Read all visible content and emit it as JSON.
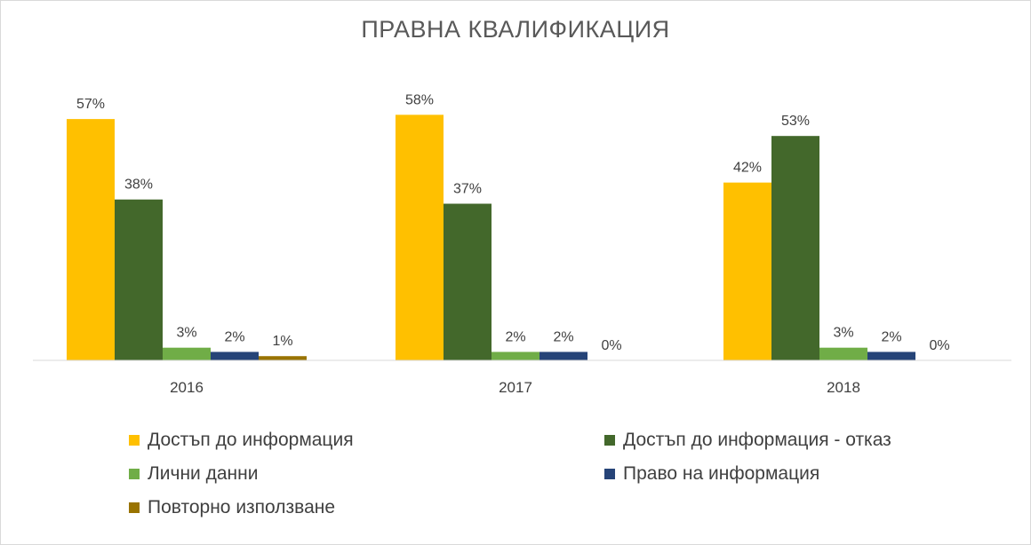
{
  "chart_data": {
    "type": "bar",
    "title": "ПРАВНА КВАЛИФИКАЦИЯ",
    "categories": [
      "2016",
      "2017",
      "2018"
    ],
    "series": [
      {
        "name": "Достъп до информация",
        "color": "#ffc000",
        "values": [
          57,
          58,
          42
        ],
        "labels": [
          "57%",
          "58%",
          "42%"
        ]
      },
      {
        "name": "Достъп до информация - отказ",
        "color": "#43682b",
        "values": [
          38,
          37,
          53
        ],
        "labels": [
          "38%",
          "37%",
          "53%"
        ]
      },
      {
        "name": "Лични данни",
        "color": "#70ad47",
        "values": [
          3,
          2,
          3
        ],
        "labels": [
          "3%",
          "2%",
          "3%"
        ]
      },
      {
        "name": "Право на информация",
        "color": "#264478",
        "values": [
          2,
          2,
          2
        ],
        "labels": [
          "2%",
          "2%",
          "2%"
        ]
      },
      {
        "name": "Повторно използване",
        "color": "#997300",
        "values": [
          1,
          0,
          0
        ],
        "labels": [
          "1%",
          "0%",
          "0%"
        ]
      }
    ],
    "ylim": [
      0,
      60
    ],
    "grid": false,
    "legend_position": "bottom"
  }
}
